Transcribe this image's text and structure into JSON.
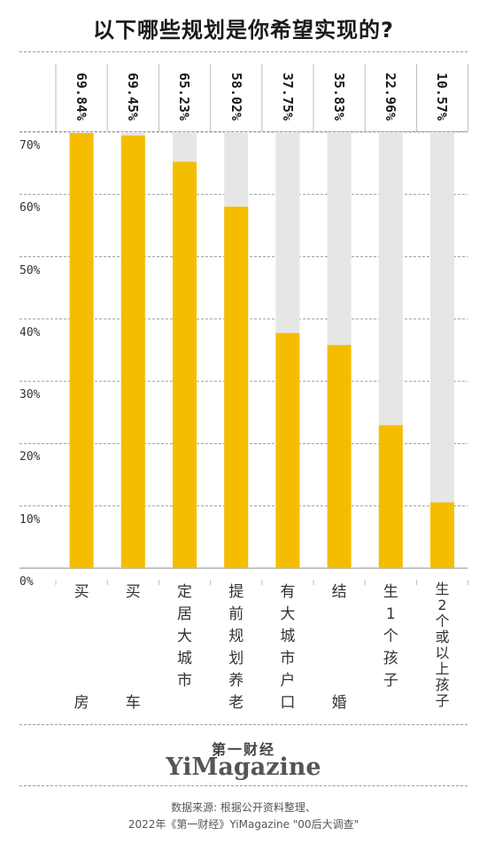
{
  "title": "以下哪些规划是你希望实现的?",
  "chart_data": {
    "type": "bar",
    "categories": [
      {
        "top": [
          "买"
        ],
        "bottom": "房"
      },
      {
        "top": [
          "买"
        ],
        "bottom": "车"
      },
      {
        "top": [
          "定",
          "居",
          "大",
          "城",
          "市"
        ],
        "bottom": ""
      },
      {
        "top": [
          "提",
          "前",
          "规",
          "划",
          "养",
          "老"
        ],
        "bottom": ""
      },
      {
        "top": [
          "有",
          "大",
          "城",
          "市",
          "户",
          "口"
        ],
        "bottom": ""
      },
      {
        "top": [
          "结"
        ],
        "bottom": "婚"
      },
      {
        "top": [
          "生",
          "1",
          "个",
          "孩",
          "子"
        ],
        "bottom": ""
      },
      {
        "top": [
          "生",
          "2",
          "个",
          "或",
          "以",
          "上",
          "孩",
          "子"
        ],
        "bottom": ""
      }
    ],
    "values": [
      69.84,
      69.45,
      65.23,
      58.02,
      37.75,
      35.83,
      22.96,
      10.57
    ],
    "value_labels": [
      "69.84%",
      "69.45%",
      "65.23%",
      "58.02%",
      "37.75%",
      "35.83%",
      "22.96%",
      "10.57%"
    ],
    "y_ticks": [
      "0%",
      "10%",
      "20%",
      "30%",
      "40%",
      "50%",
      "60%",
      "70%"
    ],
    "ylim": [
      0,
      70
    ],
    "bar_color": "#f5bd00",
    "track_color": "#e6e6e6"
  },
  "brand": {
    "cn": "第一财经",
    "en": "YiMagazine"
  },
  "source": {
    "line1": "数据来源: 根据公开资料整理、",
    "line2": "2022年《第一财经》YiMagazine \"00后大调查\""
  }
}
